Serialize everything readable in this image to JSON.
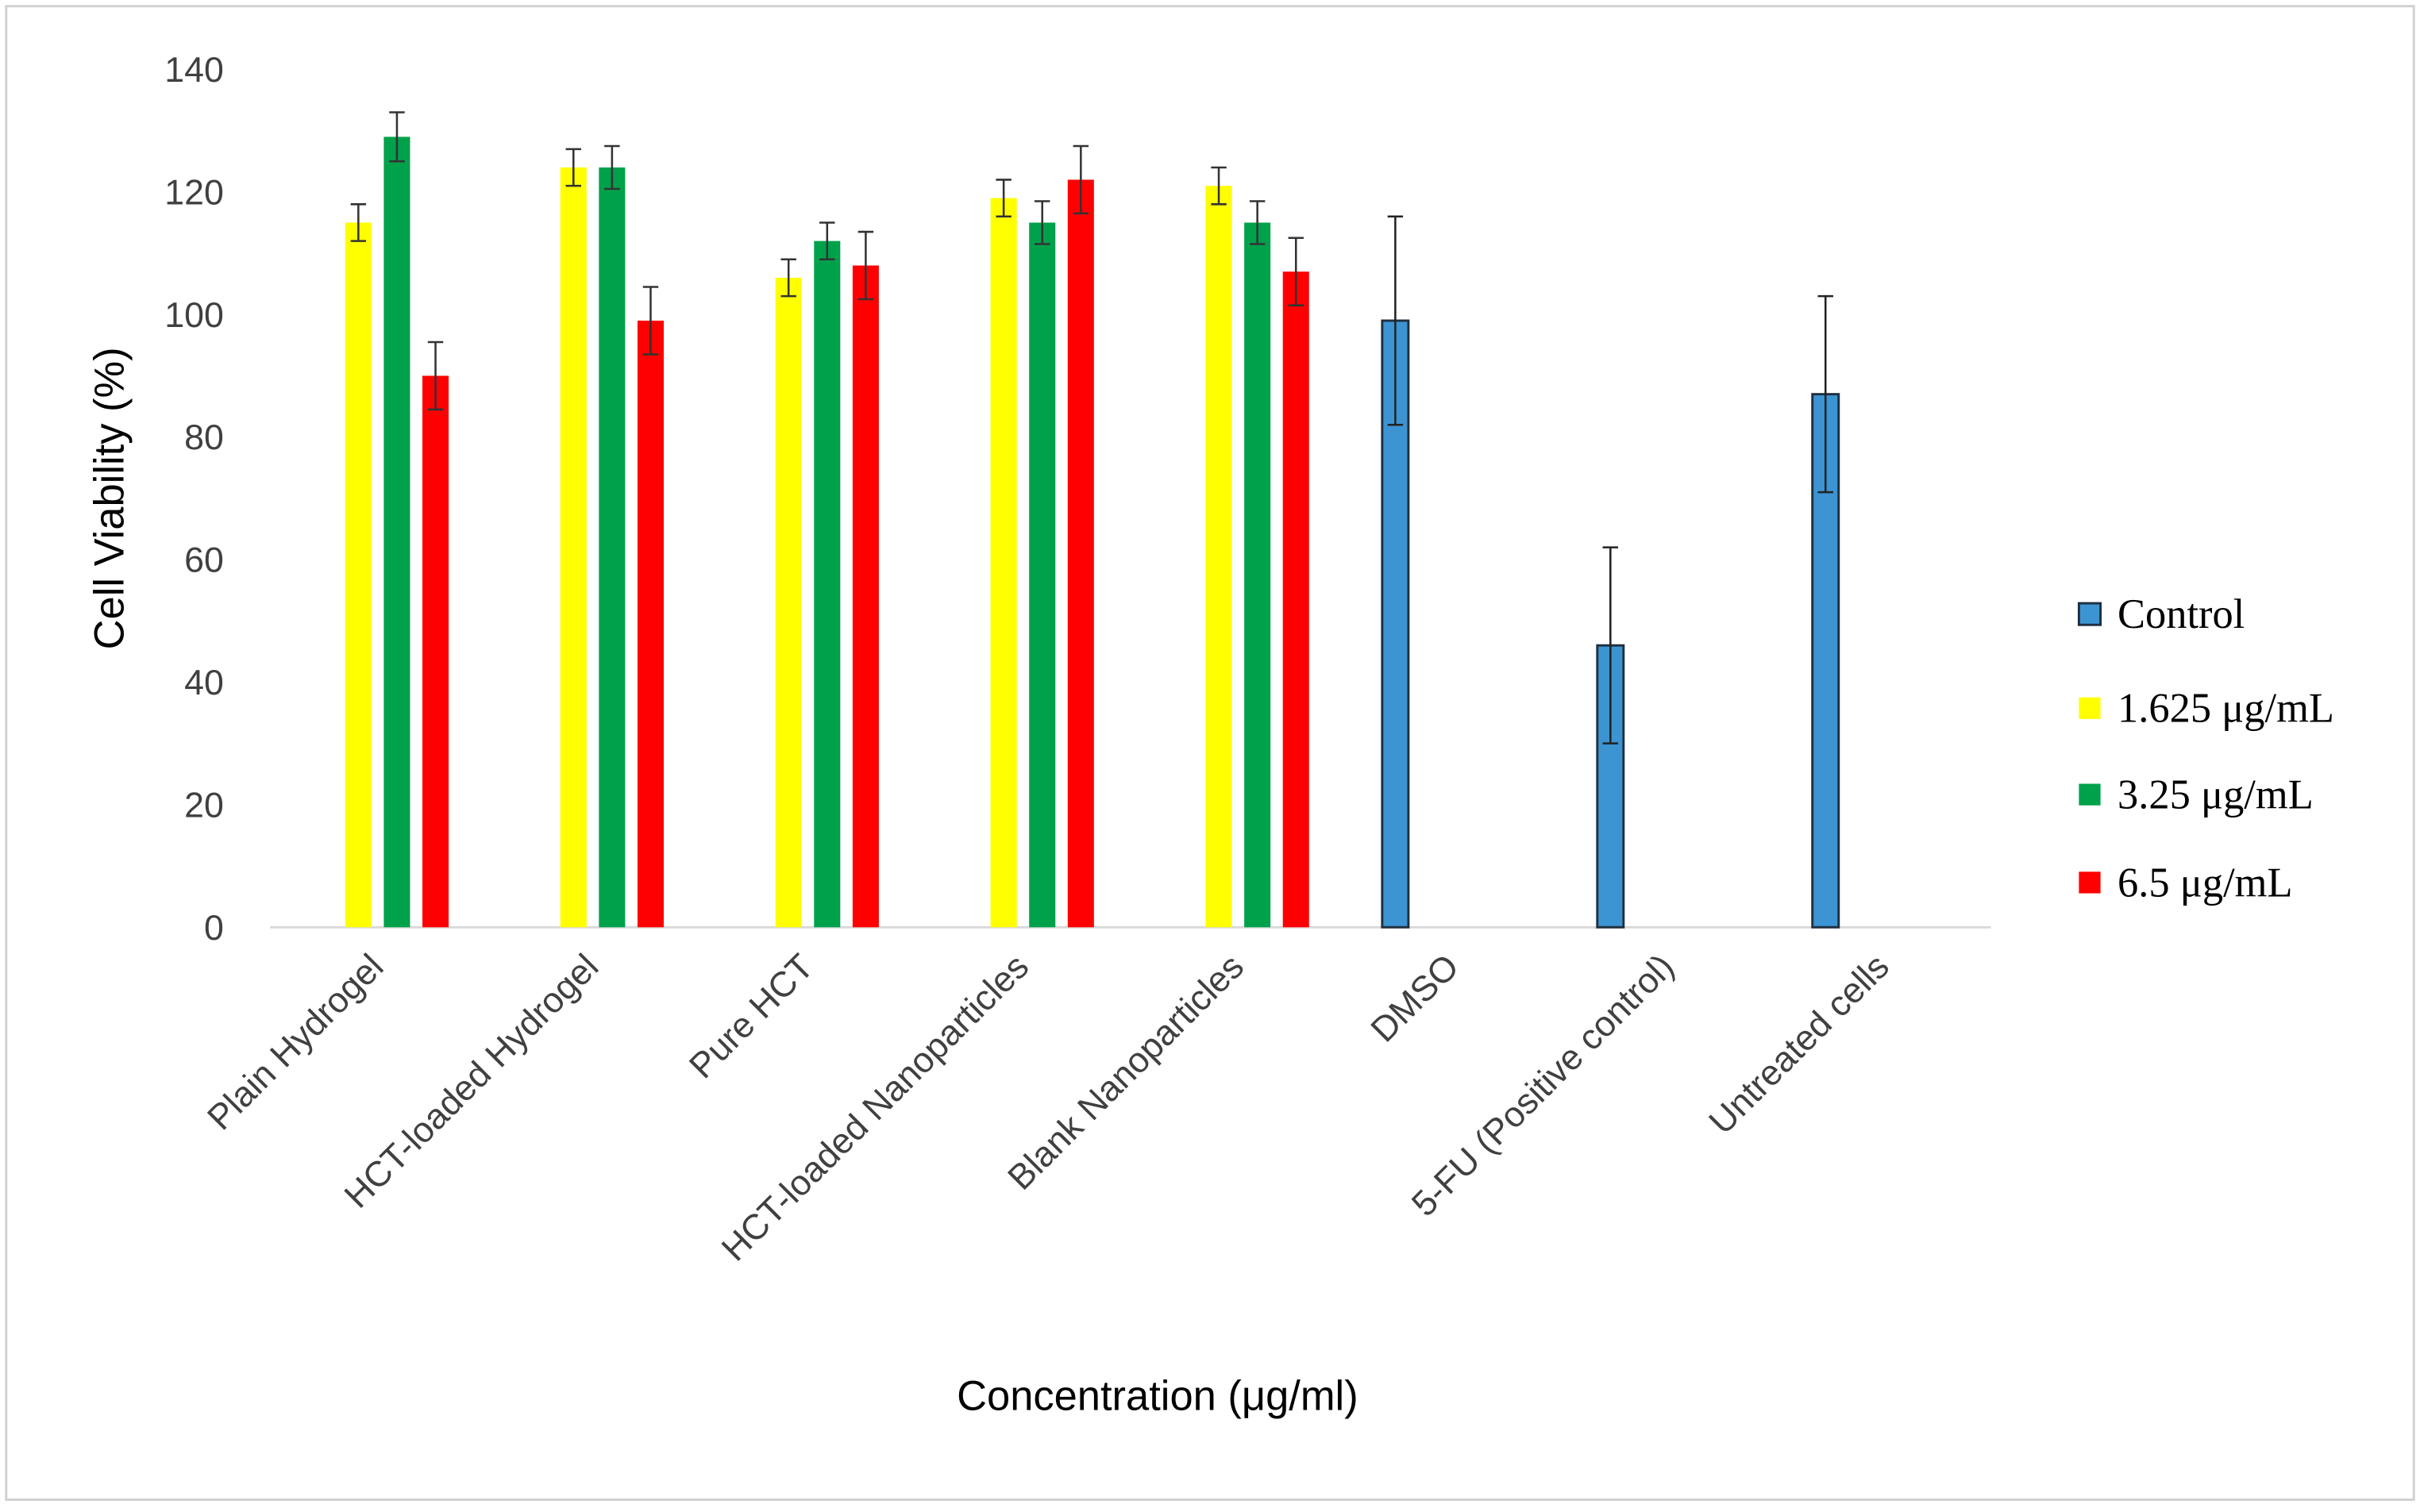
{
  "chart_data": {
    "type": "bar",
    "y_label": "Cell Viability (%)",
    "x_label": "Concentration (μg/ml)",
    "categories": [
      "Plain Hydrogel",
      "HCT-loaded Hydrogel",
      "Pure HCT",
      "HCT-loaded Nanoparticles",
      "Blank Nanoparticles",
      "DMSO",
      "5-FU (Positive control)",
      "Untreated cells"
    ],
    "series": [
      {
        "name": "Control",
        "color": "#3c94d2",
        "values": [
          null,
          null,
          null,
          null,
          null,
          99,
          46,
          87
        ],
        "errors": [
          null,
          null,
          null,
          null,
          null,
          17,
          16,
          16
        ]
      },
      {
        "name": "1.625 μg/mL",
        "color": "#ffff00",
        "values": [
          115,
          124,
          106,
          119,
          121,
          null,
          null,
          null
        ],
        "errors": [
          3,
          3,
          3,
          3,
          3,
          null,
          null,
          null
        ]
      },
      {
        "name": "3.25 μg/mL",
        "color": "#00a14b",
        "values": [
          129,
          124,
          112,
          115,
          115,
          null,
          null,
          null
        ],
        "errors": [
          4,
          3.5,
          3,
          3.5,
          3.5,
          null,
          null,
          null
        ]
      },
      {
        "name": "6.5 μg/mL",
        "color": "#ff0000",
        "values": [
          90,
          99,
          108,
          122,
          107,
          null,
          null,
          null
        ],
        "errors": [
          5.5,
          5.5,
          5.5,
          5.5,
          5.5,
          null,
          null,
          null
        ]
      }
    ],
    "ylim": [
      0,
      140
    ],
    "yticks": [
      0,
      20,
      40,
      60,
      80,
      100,
      120,
      140
    ],
    "grid": false,
    "legend": "right"
  }
}
